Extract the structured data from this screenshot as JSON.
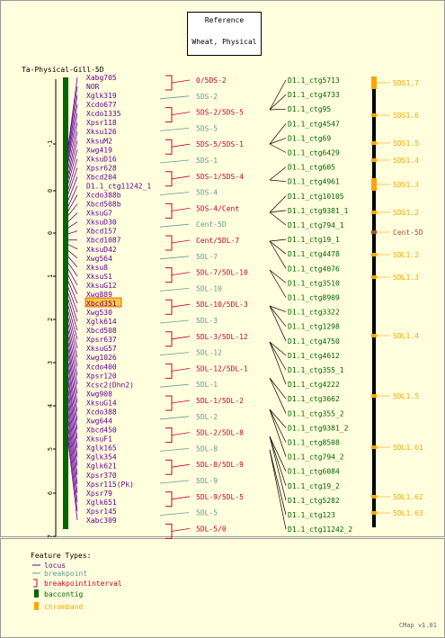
{
  "reference_box": {
    "line1": "Reference",
    "line2": "Wheat, Physical"
  },
  "map_title": "Ta-Physical-Gill-5D",
  "scale_ticks": [
    "-1",
    "0",
    "0",
    "1",
    "2",
    "3",
    "4",
    "5",
    "6",
    "7"
  ],
  "loci": [
    "Xabg705",
    "NOR",
    "Xglk319",
    "Xcdo677",
    "Xcdo1335",
    "Xpsr118",
    "Xksu126",
    "XksuM2",
    "Xwg419",
    "XksuD16",
    "Xpsr628",
    "Xbcd204",
    "D1.1_ctg11242_1",
    "Xcdo388b",
    "Xbcd508b",
    "XksuG7",
    "XksuD30",
    "Xbcd157",
    "Xbcd1087",
    "XksuD42",
    "Xwg564",
    "Xksu8",
    "XksuS1",
    "XksuG12",
    "Xwg889",
    "Xbcd351",
    "Xwg530",
    "Xglk614",
    "Xbcd508",
    "Xpsr637",
    "XksuG57",
    "Xwg1026",
    "Xcdo400",
    "Xpsr120",
    "Xcsc2(Dhn2)",
    "Xwg908",
    "XksuG14",
    "Xcdo388",
    "Xwg644",
    "Xbcd450",
    "XksuF1",
    "Xglk165",
    "Xglk354",
    "Xglk621",
    "Xpsr370",
    "Xpsr115(Pk)",
    "Xpsr79",
    "Xglk651",
    "Xpsr145",
    "Xabc309"
  ],
  "highlighted_locus": "Xbcd351",
  "bins": [
    {
      "label": "0/5DS-2",
      "kind": "interval"
    },
    {
      "label": "5DS-2",
      "kind": "breakpoint"
    },
    {
      "label": "5DS-2/5DS-5",
      "kind": "interval"
    },
    {
      "label": "5DS-5",
      "kind": "breakpoint"
    },
    {
      "label": "5DS-5/5DS-1",
      "kind": "interval"
    },
    {
      "label": "5DS-1",
      "kind": "breakpoint"
    },
    {
      "label": "5DS-1/5DS-4",
      "kind": "interval"
    },
    {
      "label": "5DS-4",
      "kind": "breakpoint"
    },
    {
      "label": "5DS-4/Cent",
      "kind": "interval"
    },
    {
      "label": "Cent-5D",
      "kind": "breakpoint"
    },
    {
      "label": "Cent/5DL-7",
      "kind": "interval"
    },
    {
      "label": "5DL-7",
      "kind": "breakpoint"
    },
    {
      "label": "5DL-7/5DL-10",
      "kind": "interval"
    },
    {
      "label": "5DL-10",
      "kind": "breakpoint"
    },
    {
      "label": "5DL-10/5DL-3",
      "kind": "interval"
    },
    {
      "label": "5DL-3",
      "kind": "breakpoint"
    },
    {
      "label": "5DL-3/5DL-12",
      "kind": "interval"
    },
    {
      "label": "5DL-12",
      "kind": "breakpoint"
    },
    {
      "label": "5DL-12/5DL-1",
      "kind": "interval"
    },
    {
      "label": "5DL-1",
      "kind": "breakpoint"
    },
    {
      "label": "5DL-1/5DL-2",
      "kind": "interval"
    },
    {
      "label": "5DL-2",
      "kind": "breakpoint"
    },
    {
      "label": "5DL-2/5DL-8",
      "kind": "interval"
    },
    {
      "label": "5DL-8",
      "kind": "breakpoint"
    },
    {
      "label": "5DL-8/5DL-9",
      "kind": "interval"
    },
    {
      "label": "5DL-9",
      "kind": "breakpoint"
    },
    {
      "label": "5DL-9/5DL-5",
      "kind": "interval"
    },
    {
      "label": "5DL-5",
      "kind": "breakpoint"
    },
    {
      "label": "5DL-5/0",
      "kind": "interval"
    }
  ],
  "contigs": [
    "D1.1_ctg5713",
    "D1.1_ctg4733",
    "D1.1_ctg95",
    "D1.1_ctg4547",
    "D1.1_ctg69",
    "D1.1_ctg6429",
    "D1.1_ctg605",
    "D1.1_ctg4961",
    "D1.1_ctg10105",
    "D1.1_ctg9381_1",
    "D1.1_ctg794_1",
    "D1.1_ctg19_1",
    "D1.1_ctg4478",
    "D1.1_ctg4076",
    "D1.1_ctg3510",
    "D1.1_ctg8909",
    "D1.1_ctg3322",
    "D1.1_ctg1298",
    "D1.1_ctg4750",
    "D1.1_ctg4612",
    "D1.1_ctg355_1",
    "D1.1_ctg4222",
    "D1.1_ctg3662",
    "D1.1_ctg355_2",
    "D1.1_ctg9381_2",
    "D1.1_ctg8508",
    "D1.1_ctg794_2",
    "D1.1_ctg6084",
    "D1.1_ctg19_2",
    "D1.1_ctg5282",
    "D1.1_ctg123",
    "D1.1_ctg11242_2"
  ],
  "chrombands": [
    {
      "label": "5DS1.7",
      "color": "#ffa500"
    },
    {
      "label": "5DS1.6",
      "color": "#ffa500"
    },
    {
      "label": "5DS1.5",
      "color": "#ffa500"
    },
    {
      "label": "5DS1.4",
      "color": "#ffa500"
    },
    {
      "label": "5DS1.3",
      "color": "#ffa500"
    },
    {
      "label": "5DS1.2",
      "color": "#ffa500"
    },
    {
      "label": "Cent-5D",
      "color": "#a0522d"
    },
    {
      "label": "5DL1.2",
      "color": "#ffa500"
    },
    {
      "label": "5DL1.3",
      "color": "#ffa500"
    },
    {
      "label": "5DL1.4",
      "color": "#ffa500"
    },
    {
      "label": "5DL1.5",
      "color": "#ffa500"
    },
    {
      "label": "5DL1.61",
      "color": "#ffa500"
    },
    {
      "label": "5DL1.62",
      "color": "#ffa500"
    },
    {
      "label": "5DL1.63",
      "color": "#ffa500"
    }
  ],
  "legend": {
    "title": "Feature Types:",
    "items": [
      {
        "label": "locus",
        "color": "#660099"
      },
      {
        "label": "breakpoint",
        "color": "#669999"
      },
      {
        "label": "breakpointinterval",
        "color": "#cc0033"
      },
      {
        "label": "baccontig",
        "color": "#006600"
      },
      {
        "label": "chromband",
        "color": "#ffa500"
      }
    ]
  },
  "footer": "CMap v1.01",
  "colors": {
    "background": "#ffffdd",
    "locus": "#660099",
    "breakpoint": "#669999",
    "interval": "#cc0033",
    "contig": "#006600",
    "chromband": "#ffa500",
    "centromere": "#a0522d",
    "highlight": "#ffcc33"
  }
}
